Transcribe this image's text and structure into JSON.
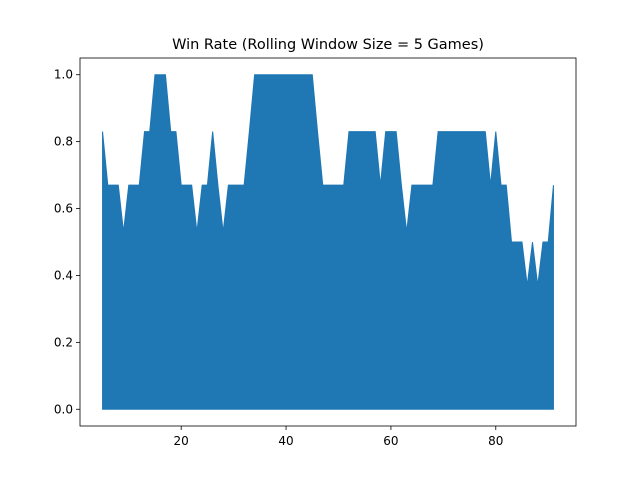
{
  "chart_data": {
    "type": "area",
    "title": "Win Rate (Rolling Window Size = 5 Games)",
    "x": [
      5,
      6,
      7,
      8,
      9,
      10,
      11,
      12,
      13,
      14,
      15,
      16,
      17,
      18,
      19,
      20,
      21,
      22,
      23,
      24,
      25,
      26,
      27,
      28,
      29,
      30,
      31,
      32,
      33,
      34,
      35,
      36,
      37,
      38,
      39,
      40,
      41,
      42,
      43,
      44,
      45,
      46,
      47,
      48,
      49,
      50,
      51,
      52,
      53,
      54,
      55,
      56,
      57,
      58,
      59,
      60,
      61,
      62,
      63,
      64,
      65,
      66,
      67,
      68,
      69,
      70,
      71,
      72,
      73,
      74,
      75,
      76,
      77,
      78,
      79,
      80,
      81,
      82,
      83,
      84,
      85,
      86,
      87,
      88,
      89,
      90,
      91
    ],
    "values": [
      0.83,
      0.67,
      0.67,
      0.67,
      0.53,
      0.67,
      0.67,
      0.67,
      0.83,
      0.83,
      1,
      1,
      1,
      0.83,
      0.83,
      0.67,
      0.67,
      0.67,
      0.53,
      0.67,
      0.67,
      0.83,
      0.67,
      0.53,
      0.67,
      0.67,
      0.67,
      0.67,
      0.83,
      1,
      1,
      1,
      1,
      1,
      1,
      1,
      1,
      1,
      1,
      1,
      1,
      0.83,
      0.67,
      0.67,
      0.67,
      0.67,
      0.67,
      0.83,
      0.83,
      0.83,
      0.83,
      0.83,
      0.83,
      0.67,
      0.83,
      0.83,
      0.83,
      0.67,
      0.53,
      0.67,
      0.67,
      0.67,
      0.67,
      0.67,
      0.83,
      0.83,
      0.83,
      0.83,
      0.83,
      0.83,
      0.83,
      0.83,
      0.83,
      0.83,
      0.67,
      0.83,
      0.67,
      0.67,
      0.5,
      0.5,
      0.5,
      0.37,
      0.5,
      0.37,
      0.5,
      0.5,
      0.67
    ],
    "color": "#1f77b4",
    "xlim": [
      0.7,
      95.3
    ],
    "ylim": [
      -0.05,
      1.05
    ],
    "xticks": [
      20,
      40,
      60,
      80
    ],
    "yticks": [
      {
        "value": 0,
        "label": "0.0"
      },
      {
        "value": 0.2,
        "label": "0.2"
      },
      {
        "value": 0.4,
        "label": "0.4"
      },
      {
        "value": 0.6,
        "label": "0.6"
      },
      {
        "value": 0.8,
        "label": "0.8"
      },
      {
        "value": 1,
        "label": "1.0"
      }
    ]
  }
}
